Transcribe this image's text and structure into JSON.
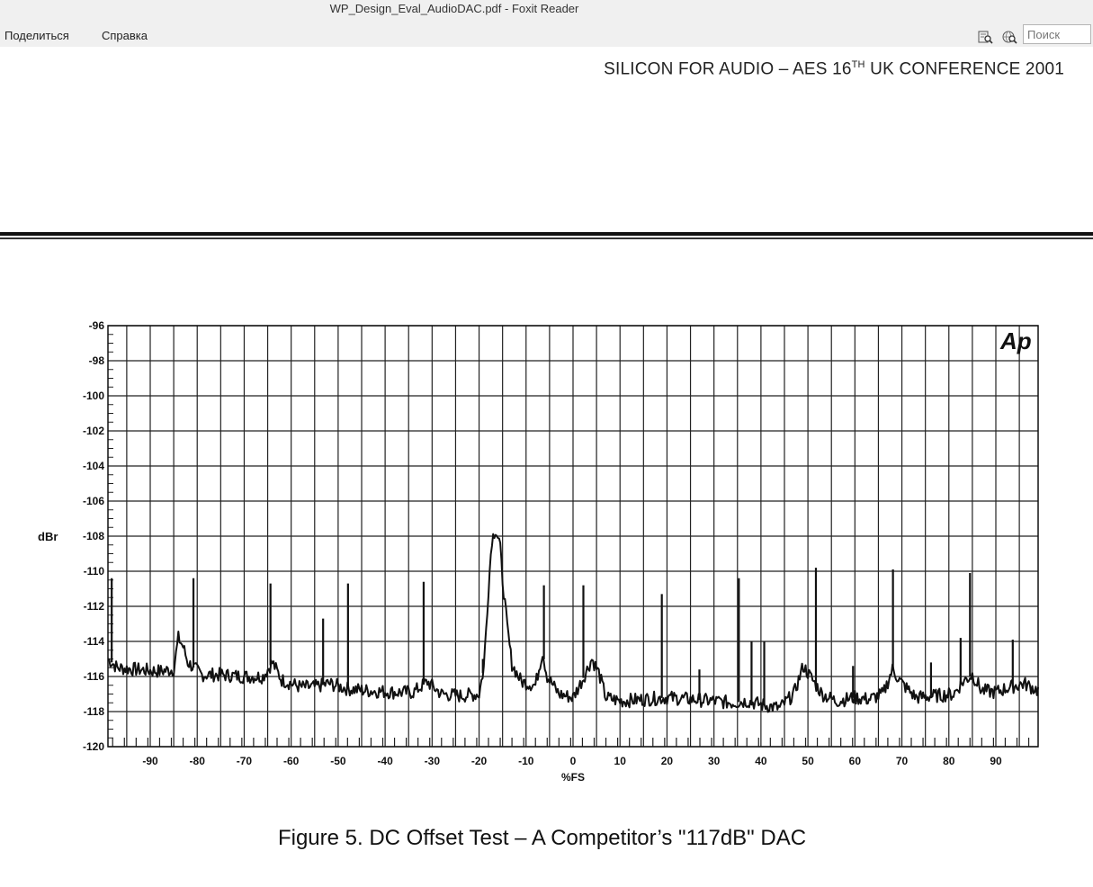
{
  "window": {
    "title": "WP_Design_Eval_AudioDAC.pdf - Foxit Reader"
  },
  "menu": {
    "items": [
      {
        "label": "Поделиться"
      },
      {
        "label": "Справка"
      }
    ]
  },
  "toolbar": {
    "icons": [
      "find-in-document-icon",
      "web-search-icon"
    ],
    "search": {
      "placeholder": "Поиск",
      "value": ""
    }
  },
  "document": {
    "header": {
      "text_before": "SILICON FOR AUDIO – AES 16",
      "sup": "TH",
      "text_after": " UK CONFERENCE 2001"
    },
    "caption": "Figure 5.  DC Offset Test – A Competitor’s \"117dB\" DAC",
    "logo_text": "Ap"
  },
  "chart_data": {
    "type": "line",
    "title": "",
    "xlabel": "%FS",
    "ylabel": "dBr",
    "xlim": [
      -99,
      99
    ],
    "ylim": [
      -120,
      -96
    ],
    "x_ticks": [
      -90,
      -80,
      -70,
      -60,
      -50,
      -40,
      -30,
      -20,
      -10,
      0,
      10,
      20,
      30,
      40,
      50,
      60,
      70,
      80,
      90
    ],
    "y_ticks": [
      -96,
      -98,
      -100,
      -102,
      -104,
      -106,
      -108,
      -110,
      -112,
      -114,
      -116,
      -118,
      -120
    ],
    "grid": true,
    "series": [
      {
        "name": "",
        "color": "#111111",
        "baseline_points": [
          {
            "x": -99,
            "y": -115.0
          },
          {
            "x": -97,
            "y": -115.5
          },
          {
            "x": -93,
            "y": -115.6
          },
          {
            "x": -88,
            "y": -115.7
          },
          {
            "x": -85,
            "y": -115.6
          },
          {
            "x": -84,
            "y": -113.8
          },
          {
            "x": -83,
            "y": -114.3
          },
          {
            "x": -82,
            "y": -115.2
          },
          {
            "x": -79,
            "y": -115.9
          },
          {
            "x": -75,
            "y": -115.9
          },
          {
            "x": -70,
            "y": -116.0
          },
          {
            "x": -66,
            "y": -116.0
          },
          {
            "x": -64,
            "y": -115.2
          },
          {
            "x": -62,
            "y": -116.2
          },
          {
            "x": -58,
            "y": -116.6
          },
          {
            "x": -55,
            "y": -116.6
          },
          {
            "x": -52,
            "y": -116.4
          },
          {
            "x": -48,
            "y": -116.7
          },
          {
            "x": -44,
            "y": -116.8
          },
          {
            "x": -38,
            "y": -116.9
          },
          {
            "x": -34,
            "y": -116.9
          },
          {
            "x": -31,
            "y": -116.3
          },
          {
            "x": -28,
            "y": -117.0
          },
          {
            "x": -24,
            "y": -117.1
          },
          {
            "x": -20,
            "y": -117.0
          },
          {
            "x": -19,
            "y": -115.5
          },
          {
            "x": -18,
            "y": -111.0
          },
          {
            "x": -17.3,
            "y": -108.2
          },
          {
            "x": -16.5,
            "y": -107.6
          },
          {
            "x": -15.6,
            "y": -108.4
          },
          {
            "x": -15,
            "y": -110.5
          },
          {
            "x": -14,
            "y": -113.2
          },
          {
            "x": -13,
            "y": -115.3
          },
          {
            "x": -11,
            "y": -116.3
          },
          {
            "x": -8,
            "y": -116.5
          },
          {
            "x": -6.5,
            "y": -114.6
          },
          {
            "x": -5.5,
            "y": -116.0
          },
          {
            "x": -3,
            "y": -117.0
          },
          {
            "x": 0,
            "y": -117.2
          },
          {
            "x": 2,
            "y": -116.2
          },
          {
            "x": 4,
            "y": -115.0
          },
          {
            "x": 5.5,
            "y": -115.8
          },
          {
            "x": 7,
            "y": -117.2
          },
          {
            "x": 10,
            "y": -117.4
          },
          {
            "x": 15,
            "y": -117.3
          },
          {
            "x": 20,
            "y": -117.2
          },
          {
            "x": 25,
            "y": -117.3
          },
          {
            "x": 30,
            "y": -117.4
          },
          {
            "x": 34,
            "y": -117.5
          },
          {
            "x": 37,
            "y": -117.4
          },
          {
            "x": 40,
            "y": -117.6
          },
          {
            "x": 44,
            "y": -117.8
          },
          {
            "x": 47,
            "y": -117.0
          },
          {
            "x": 49,
            "y": -115.4
          },
          {
            "x": 51,
            "y": -116.2
          },
          {
            "x": 53,
            "y": -117.0
          },
          {
            "x": 56,
            "y": -117.4
          },
          {
            "x": 60,
            "y": -117.2
          },
          {
            "x": 63,
            "y": -117.3
          },
          {
            "x": 66,
            "y": -117.0
          },
          {
            "x": 68,
            "y": -115.6
          },
          {
            "x": 70,
            "y": -116.4
          },
          {
            "x": 73,
            "y": -117.2
          },
          {
            "x": 77,
            "y": -117.1
          },
          {
            "x": 81,
            "y": -117.0
          },
          {
            "x": 83,
            "y": -116.3
          },
          {
            "x": 85,
            "y": -115.9
          },
          {
            "x": 87,
            "y": -116.8
          },
          {
            "x": 90,
            "y": -116.9
          },
          {
            "x": 93,
            "y": -116.6
          },
          {
            "x": 96,
            "y": -116.4
          },
          {
            "x": 99,
            "y": -116.8
          }
        ],
        "spikes": [
          {
            "x": -98.2,
            "y": -110.4
          },
          {
            "x": -80.8,
            "y": -110.4
          },
          {
            "x": -64.4,
            "y": -110.7
          },
          {
            "x": -53.2,
            "y": -112.7
          },
          {
            "x": -47.9,
            "y": -110.7
          },
          {
            "x": -31.8,
            "y": -110.6
          },
          {
            "x": -19.2,
            "y": -115.0
          },
          {
            "x": -6.2,
            "y": -110.8
          },
          {
            "x": 2.2,
            "y": -110.8
          },
          {
            "x": 18.9,
            "y": -111.3
          },
          {
            "x": 26.9,
            "y": -115.6
          },
          {
            "x": 35.3,
            "y": -110.4
          },
          {
            "x": 38.0,
            "y": -114.0
          },
          {
            "x": 40.7,
            "y": -114.0
          },
          {
            "x": 51.7,
            "y": -109.8
          },
          {
            "x": 59.6,
            "y": -115.4
          },
          {
            "x": 68.1,
            "y": -109.9
          },
          {
            "x": 76.2,
            "y": -115.2
          },
          {
            "x": 82.5,
            "y": -113.8
          },
          {
            "x": 84.5,
            "y": -110.1
          },
          {
            "x": 93.6,
            "y": -113.9
          }
        ]
      }
    ]
  }
}
